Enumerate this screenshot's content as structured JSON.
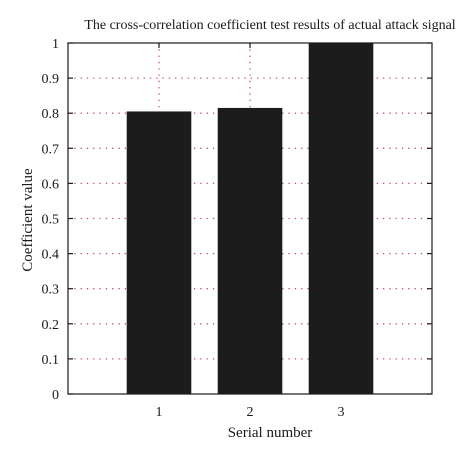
{
  "chart_data": {
    "type": "bar",
    "title": "The cross-correlation coefficient test results of actual attack signal",
    "xlabel": "Serial number",
    "ylabel": "Coefficient value",
    "categories": [
      "1",
      "2",
      "3"
    ],
    "values": [
      0.805,
      0.815,
      1.0
    ],
    "ylim": [
      0,
      1
    ],
    "yticks": [
      "0",
      "0.1",
      "0.2",
      "0.3",
      "0.4",
      "0.5",
      "0.6",
      "0.7",
      "0.8",
      "0.9",
      "1"
    ],
    "grid": true,
    "legend": "none",
    "colors": {
      "bar": "#1c1c1c",
      "grid": "#c8505a",
      "axis": "#1a1a1a"
    }
  }
}
